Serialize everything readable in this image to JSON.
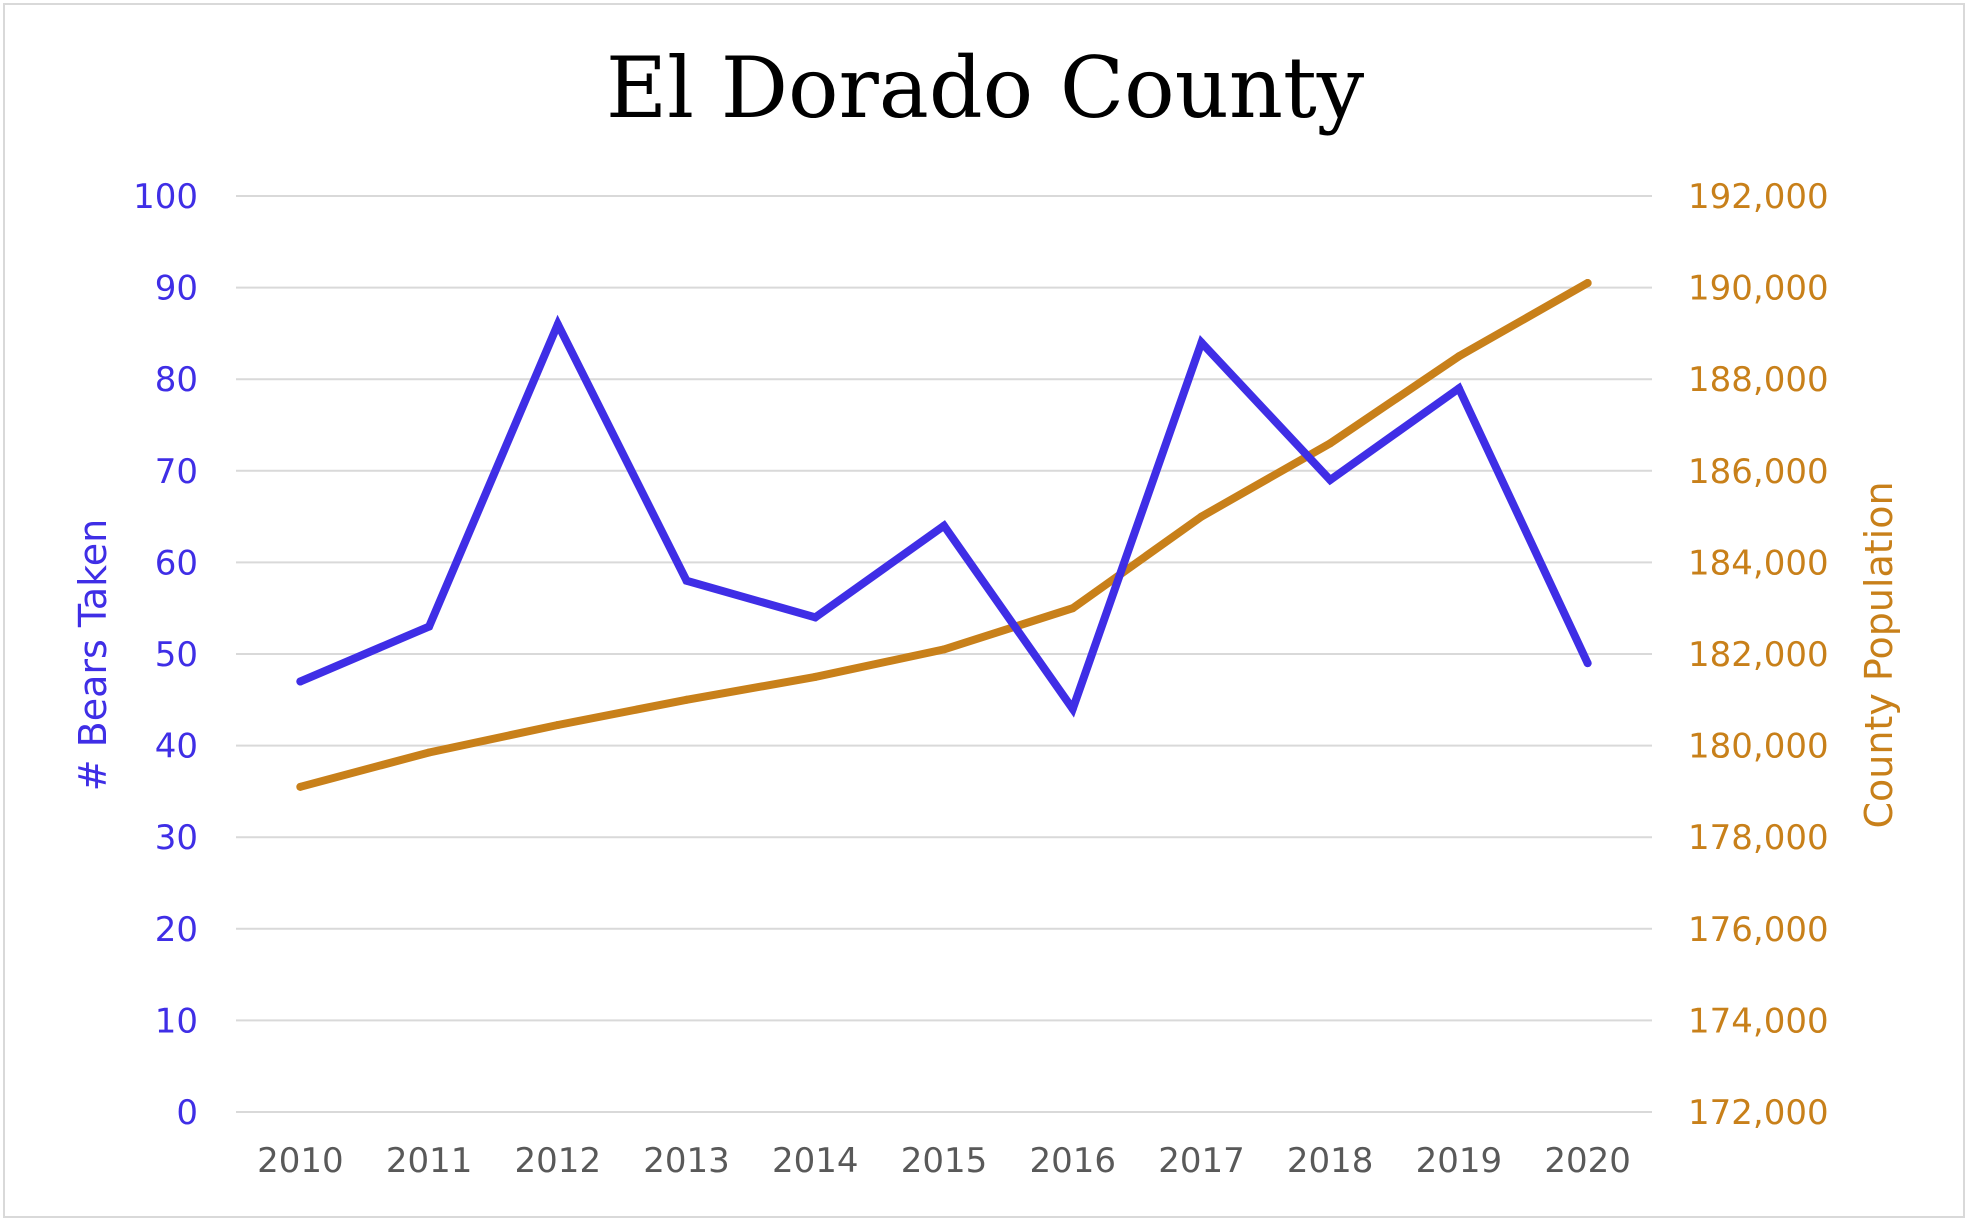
{
  "chart_data": {
    "type": "line",
    "title": "El Dorado County",
    "categories": [
      "2010",
      "2011",
      "2012",
      "2013",
      "2014",
      "2015",
      "2016",
      "2017",
      "2018",
      "2019",
      "2020"
    ],
    "y_left": {
      "label": "# Bears Taken",
      "range": [
        0,
        100
      ],
      "ticks": [
        "0",
        "10",
        "20",
        "30",
        "40",
        "50",
        "60",
        "70",
        "80",
        "90",
        "100"
      ],
      "color": "#3f2ee6"
    },
    "y_right": {
      "label": "County Population",
      "range": [
        172000,
        192000
      ],
      "ticks": [
        "172,000",
        "174,000",
        "176,000",
        "178,000",
        "180,000",
        "182,000",
        "184,000",
        "186,000",
        "188,000",
        "190,000",
        "192,000"
      ],
      "color": "#c8801a"
    },
    "series": [
      {
        "axis": "left",
        "color": "#3f2ee6",
        "values": [
          47,
          53,
          86,
          58,
          54,
          64,
          44,
          84,
          69,
          79,
          49
        ]
      },
      {
        "axis": "right",
        "color": "#c8801a",
        "values": [
          179100,
          179850,
          180450,
          181000,
          181500,
          182100,
          183000,
          185000,
          186600,
          188500,
          190100
        ]
      }
    ],
    "grid": true,
    "legend": "none"
  }
}
